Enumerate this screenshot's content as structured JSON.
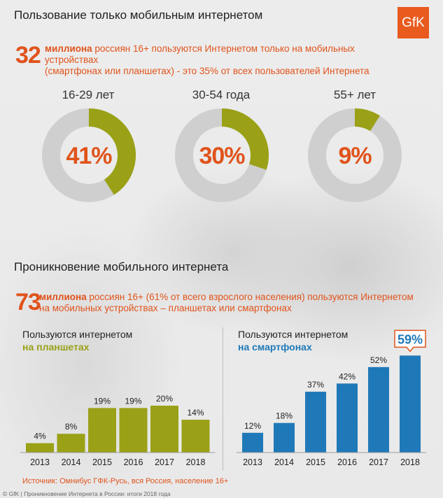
{
  "header": {
    "title": "Пользование только мобильным интернетом",
    "logo_text": "GfK"
  },
  "section1": {
    "big_number": "32",
    "intro_bold": "миллиона",
    "intro_rest": " россиян 16+ пользуются Интернетом только на мобильных устройствах",
    "intro_line2": "(смартфонах или планшетах) - это 35% от всех пользователей Интернета"
  },
  "section2": {
    "title": "Проникновение мобильного интернета",
    "big_number": "73",
    "intro_bold": "миллиона",
    "intro_rest": " россиян 16+ (61% от всего взрослого населения) пользуются Интернетом",
    "intro_line2": "на мобильных устройствах – планшетах или смартфонах"
  },
  "chart_data": [
    {
      "type": "donut",
      "title": "16-29 лет",
      "value": 41,
      "label": "41%",
      "color": "#9aa117",
      "track_color": "#cfcfcf"
    },
    {
      "type": "donut",
      "title": "30-54 года",
      "value": 30,
      "label": "30%",
      "color": "#9aa117",
      "track_color": "#cfcfcf"
    },
    {
      "type": "donut",
      "title": "55+ лет",
      "value": 9,
      "label": "9%",
      "color": "#9aa117",
      "track_color": "#cfcfcf"
    },
    {
      "type": "bar",
      "title": "Пользуются интернетом",
      "subtitle": "на планшетах",
      "color": "#9aa117",
      "categories": [
        "2013",
        "2014",
        "2015",
        "2016",
        "2017",
        "2018"
      ],
      "values": [
        4,
        8,
        19,
        19,
        20,
        14
      ],
      "labels": [
        "4%",
        "8%",
        "19%",
        "19%",
        "20%",
        "14%"
      ],
      "ylim": [
        0,
        60
      ]
    },
    {
      "type": "bar",
      "title": "Пользуются интернетом",
      "subtitle": "на смартфонах",
      "color": "#1f79b8",
      "categories": [
        "2013",
        "2014",
        "2015",
        "2016",
        "2017",
        "2018"
      ],
      "values": [
        12,
        18,
        37,
        42,
        52,
        59
      ],
      "labels": [
        "12%",
        "18%",
        "37%",
        "42%",
        "52%",
        "59%"
      ],
      "highlight_index": 5,
      "ylim": [
        0,
        60
      ]
    }
  ],
  "source": "Источник: Омнибус ГФК-Русь, вся Россия, население 16+",
  "footer": "© GfK | Проникновение Интернета в России: итоги 2018 года"
}
